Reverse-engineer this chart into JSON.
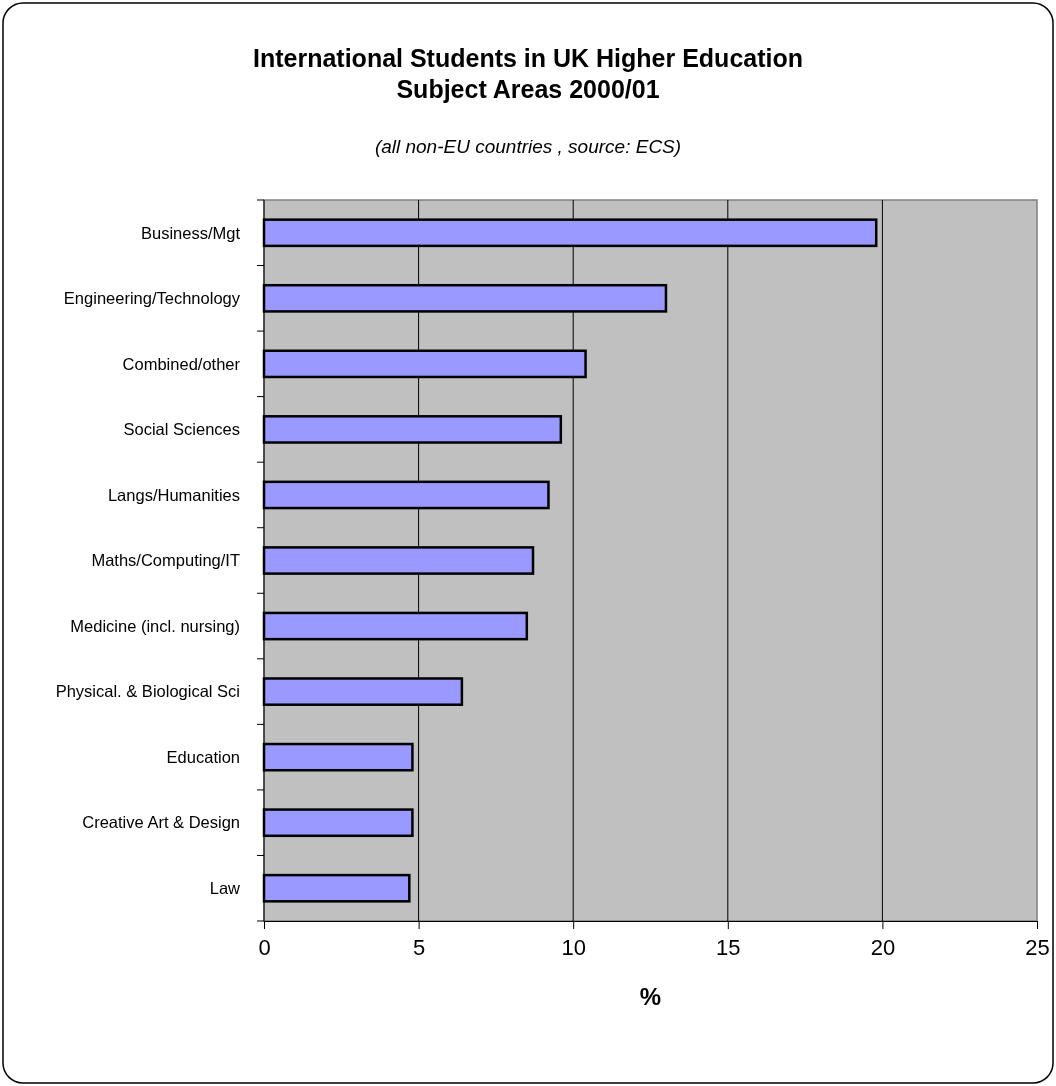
{
  "chart_data": {
    "type": "bar",
    "orientation": "horizontal",
    "title": "International Students in UK Higher Education\nSubject Areas 2000/01",
    "subtitle": "(all non-EU countries , source: ECS)",
    "xlabel": "%",
    "categories": [
      "Business/Mgt",
      "Engineering/Technology",
      "Combined/other",
      "Social Sciences",
      "Langs/Humanities",
      "Maths/Computing/IT",
      "Medicine (incl. nursing)",
      "Physical. & Biological Sci",
      "Education",
      "Creative Art & Design",
      "Law"
    ],
    "values": [
      19.8,
      13.0,
      10.4,
      9.6,
      9.2,
      8.7,
      8.5,
      6.4,
      4.8,
      4.8,
      4.7
    ],
    "color": "#9999ff",
    "xlim": [
      0,
      25
    ],
    "xticks": [
      0,
      5,
      10,
      15,
      20,
      25
    ],
    "grid": "x"
  }
}
